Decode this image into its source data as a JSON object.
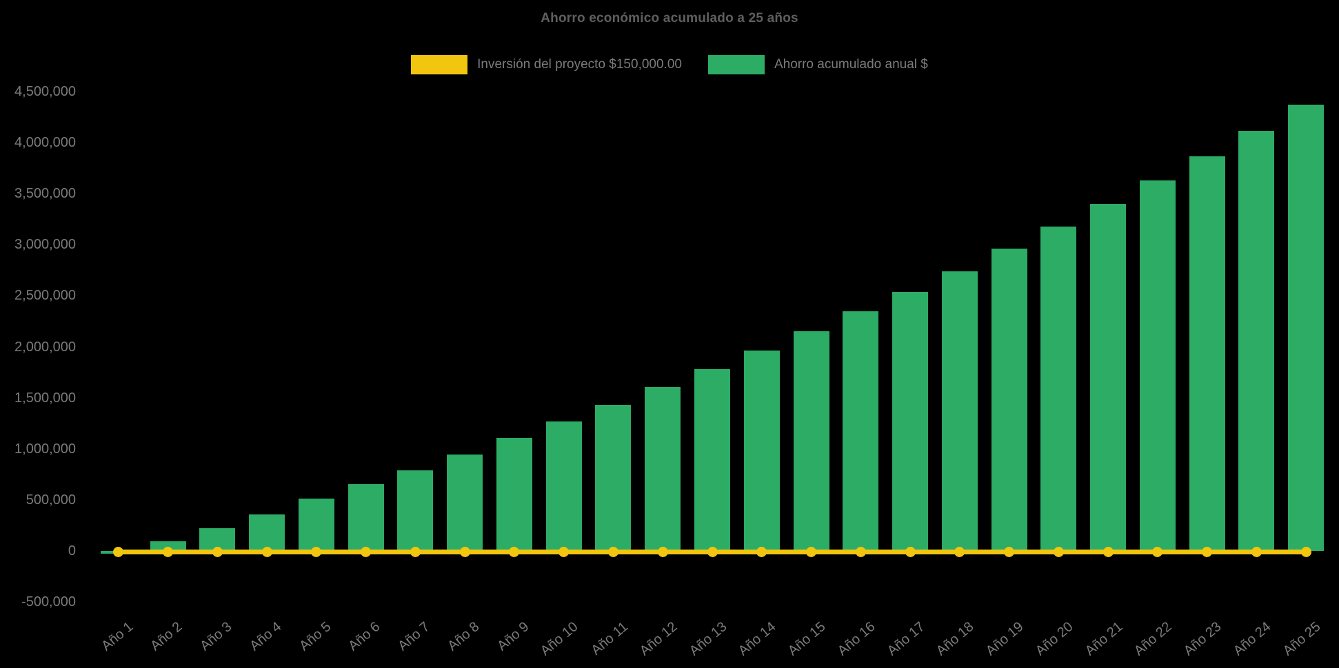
{
  "page": {
    "background_color": "#000000"
  },
  "chart_data": {
    "type": "bar",
    "title": "Ahorro económico acumulado a 25 años",
    "legend_position": "top",
    "gridlines": "none visible",
    "categories": [
      "Año 1",
      "Año 2",
      "Año 3",
      "Año 4",
      "Año 5",
      "Año 6",
      "Año 7",
      "Año 8",
      "Año 9",
      "Año 10",
      "Año 11",
      "Año 12",
      "Año 13",
      "Año 14",
      "Año 15",
      "Año 16",
      "Año 17",
      "Año 18",
      "Año 19",
      "Año 20",
      "Año 21",
      "Año 22",
      "Año 23",
      "Año 24",
      "Año 25"
    ],
    "series": [
      {
        "name": "Inversión del proyecto $150,000.00",
        "type": "line",
        "color": "#F2C50F",
        "value_per_year": 150000,
        "points": 25,
        "plotted_along": "zero baseline (flat line with a dot at every year)"
      },
      {
        "name": "Ahorro acumulado anual $",
        "type": "bar",
        "color": "#2CAC65",
        "values": [
          -30000,
          95000,
          225000,
          360000,
          515000,
          655000,
          790000,
          945000,
          1105000,
          1270000,
          1430000,
          1605000,
          1780000,
          1965000,
          2150000,
          2345000,
          2540000,
          2740000,
          2960000,
          3175000,
          3400000,
          3630000,
          3865000,
          4115000,
          4370000
        ]
      }
    ],
    "y_axis": {
      "min": -500000,
      "max": 4500000,
      "step": 500000,
      "tick_labels": [
        "4,500,000",
        "4,000,000",
        "3,500,000",
        "3,000,000",
        "2,500,000",
        "2,000,000",
        "1,500,000",
        "1,000,000",
        "500,000",
        "0",
        "-500,000"
      ]
    },
    "x_axis": {
      "label_rotation_deg": -40
    },
    "text_color": "#7b7b7b",
    "title_color": "#5f5f5f"
  }
}
